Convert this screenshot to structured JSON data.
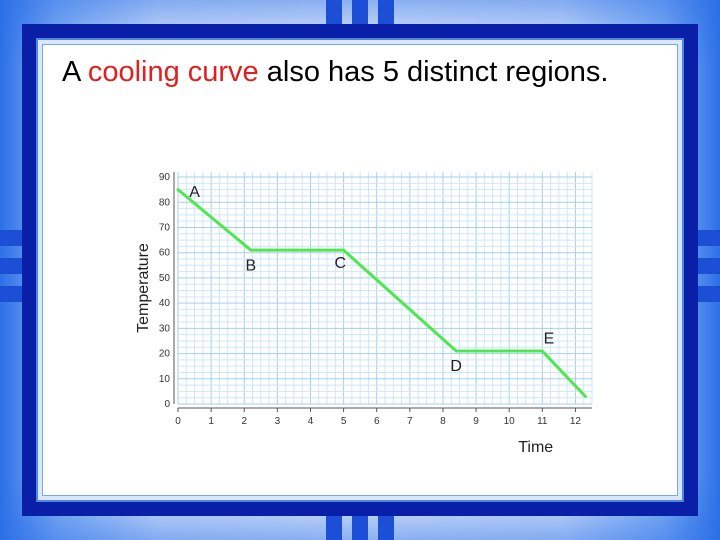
{
  "slide": {
    "title_prefix": "A ",
    "title_highlight": "cooling curve",
    "title_suffix": " also has 5 distinct regions.",
    "colors": {
      "highlight": "#e21e1e",
      "frame": "#0a1fa8",
      "line": "#4ee84e",
      "grid_minor": "#cfe6f7",
      "grid_major": "#a6cfee"
    }
  },
  "chart_data": {
    "type": "line",
    "title": "",
    "xlabel": "Time",
    "ylabel": "Temperature",
    "xlim": [
      0,
      12.5
    ],
    "ylim": [
      0,
      92
    ],
    "x_ticks": [
      "0",
      "1",
      "2",
      "3",
      "4",
      "5",
      "6",
      "7",
      "8",
      "9",
      "10",
      "11",
      "12"
    ],
    "y_ticks": [
      "0",
      "10",
      "20",
      "30",
      "40",
      "50",
      "60",
      "70",
      "80",
      "90"
    ],
    "grid": true,
    "series": [
      {
        "x": [
          0,
          2.2,
          5.0,
          8.4,
          11.0,
          12.3
        ],
        "y": [
          85,
          61,
          61,
          21,
          21,
          3
        ]
      }
    ],
    "point_labels": [
      {
        "text": "A",
        "x": 0.5,
        "y": 82
      },
      {
        "text": "B",
        "x": 2.2,
        "y": 53
      },
      {
        "text": "C",
        "x": 4.9,
        "y": 54
      },
      {
        "text": "D",
        "x": 8.4,
        "y": 13
      },
      {
        "text": "E",
        "x": 11.2,
        "y": 24
      }
    ]
  }
}
